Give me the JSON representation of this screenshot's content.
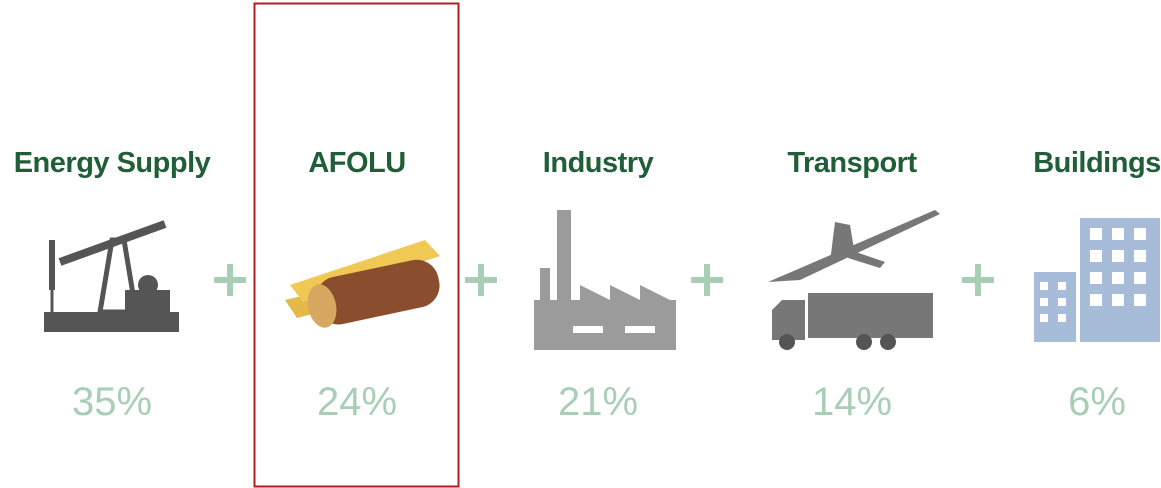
{
  "items": [
    {
      "label": "Energy Supply",
      "share": "35%"
    },
    {
      "label": "AFOLU",
      "share": "24%"
    },
    {
      "label": "Industry",
      "share": "21%"
    },
    {
      "label": "Transport",
      "share": "14%"
    },
    {
      "label": "Buildings",
      "share": "6%"
    }
  ]
}
